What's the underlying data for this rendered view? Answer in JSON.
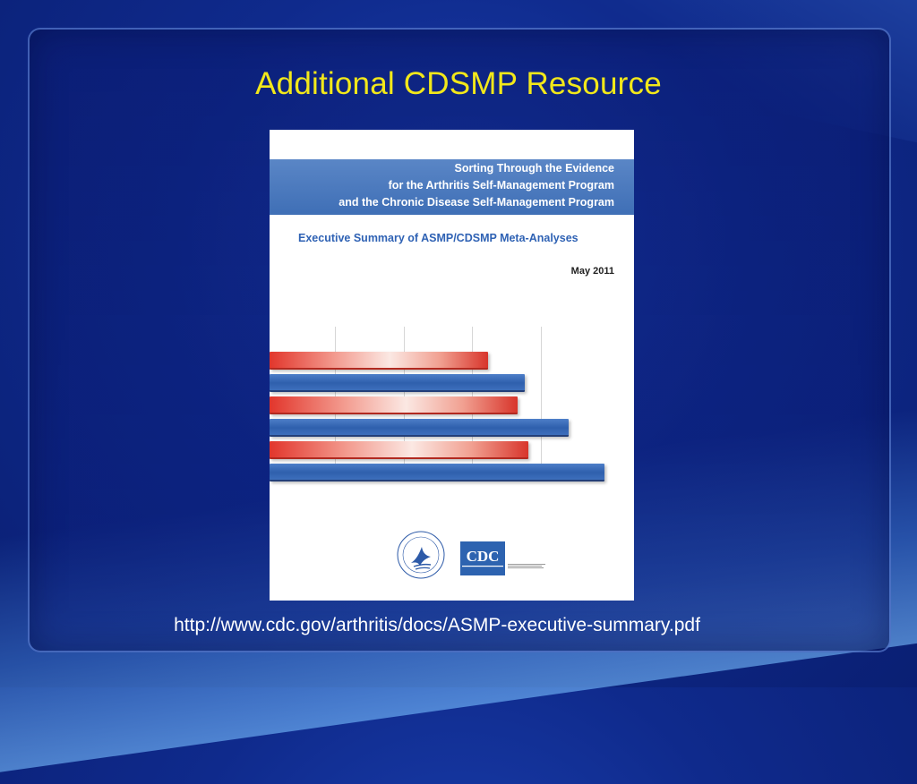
{
  "slide": {
    "title": "Additional CDSMP Resource",
    "url": "http://www.cdc.gov/arthritis/docs/ASMP-executive-summary.pdf"
  },
  "cover": {
    "heading_lines": [
      "Sorting Through the Evidence",
      "for the Arthritis Self-Management Program",
      "and the Chronic Disease Self-Management Program"
    ],
    "subtitle": "Executive Summary of ASMP/CDSMP Meta-Analyses",
    "date": "May 2011",
    "logo_text": "CDC",
    "bars": [
      {
        "color": "red",
        "value": 0.6
      },
      {
        "color": "blue",
        "value": 0.7
      },
      {
        "color": "red",
        "value": 0.68
      },
      {
        "color": "blue",
        "value": 0.82
      },
      {
        "color": "red",
        "value": 0.71
      },
      {
        "color": "blue",
        "value": 0.92
      }
    ]
  },
  "colors": {
    "title": "#f2e81a",
    "band": "#4a78bd",
    "bar_red": "#e2362c",
    "bar_blue": "#2f60ad"
  },
  "icons": {
    "seal": "hhs-eagle-seal-icon",
    "cdc": "cdc-logo-icon"
  }
}
